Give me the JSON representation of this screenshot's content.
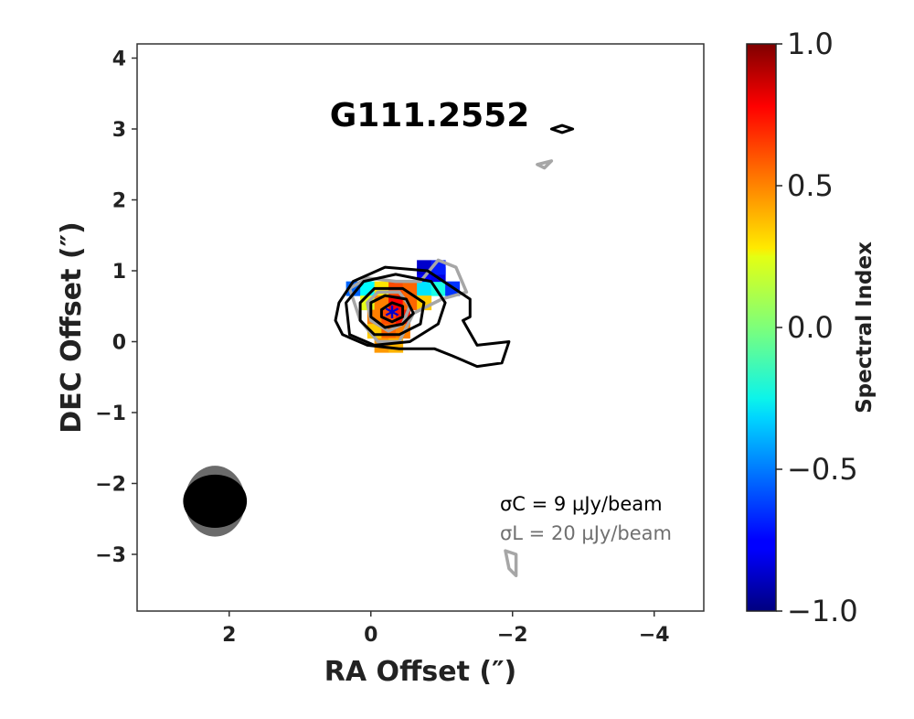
{
  "chart_data": {
    "type": "heatmap",
    "title": "G111.2552",
    "xlabel": "RA Offset (″)",
    "ylabel": "DEC Offset (″)",
    "xlim": [
      3.3,
      -4.7
    ],
    "ylim": [
      -3.8,
      4.2
    ],
    "x_ticks": [
      2,
      0,
      -2,
      -4
    ],
    "x_tick_labels": [
      "2",
      "0",
      "−2",
      "−4"
    ],
    "y_ticks": [
      -3,
      -2,
      -1,
      0,
      1,
      2,
      3,
      4
    ],
    "y_tick_labels": [
      "−3",
      "−2",
      "−1",
      "0",
      "1",
      "2",
      "3",
      "4"
    ],
    "grid": false,
    "colorbar": {
      "label": "Spectral Index",
      "colormap": "jet",
      "range": [
        -1.0,
        1.0
      ],
      "ticks": [
        1.0,
        0.5,
        0.0,
        -0.5,
        -1.0
      ],
      "tick_labels": [
        "1.0",
        "0.5",
        "0.0",
        "−0.5",
        "−1.0"
      ]
    },
    "spectral_index_pixels": [
      {
        "x": 0.25,
        "y": 0.75,
        "value": -0.55
      },
      {
        "x": 0.05,
        "y": 0.75,
        "value": -0.25
      },
      {
        "x": -0.15,
        "y": 0.75,
        "value": 0.3
      },
      {
        "x": -0.35,
        "y": 0.75,
        "value": 0.6
      },
      {
        "x": -0.55,
        "y": 0.75,
        "value": 0.55
      },
      {
        "x": -0.75,
        "y": 0.75,
        "value": -0.3
      },
      {
        "x": -0.95,
        "y": 0.75,
        "value": -0.2
      },
      {
        "x": -1.15,
        "y": 0.75,
        "value": -0.65
      },
      {
        "x": 0.05,
        "y": 0.55,
        "value": 0.2
      },
      {
        "x": -0.15,
        "y": 0.55,
        "value": 0.5
      },
      {
        "x": -0.35,
        "y": 0.55,
        "value": 0.75
      },
      {
        "x": -0.55,
        "y": 0.55,
        "value": 0.55
      },
      {
        "x": -0.75,
        "y": 0.55,
        "value": 0.35
      },
      {
        "x": -0.05,
        "y": 0.35,
        "value": 0.5
      },
      {
        "x": -0.25,
        "y": 0.35,
        "value": 0.6
      },
      {
        "x": -0.45,
        "y": 0.35,
        "value": 0.7
      },
      {
        "x": -0.05,
        "y": 0.15,
        "value": 0.35
      },
      {
        "x": -0.25,
        "y": 0.15,
        "value": 0.55
      },
      {
        "x": -0.45,
        "y": 0.15,
        "value": 0.5
      },
      {
        "x": -0.15,
        "y": -0.05,
        "value": 0.45
      },
      {
        "x": -0.35,
        "y": -0.05,
        "value": 0.4
      },
      {
        "x": -0.75,
        "y": 0.95,
        "value": -0.75
      },
      {
        "x": -0.95,
        "y": 0.95,
        "value": -0.8
      },
      {
        "x": -0.75,
        "y": 1.05,
        "value": -0.85
      },
      {
        "x": -0.95,
        "y": 1.05,
        "value": -0.7
      }
    ],
    "continuum_contours": {
      "color": "#000000",
      "rms_label": "σC = 9 µJy/beam",
      "levels": [
        {
          "points": [
            [
              0.45,
              0.55
            ],
            [
              0.25,
              0.85
            ],
            [
              -0.2,
              1.05
            ],
            [
              -0.8,
              1.0
            ],
            [
              -1.4,
              0.6
            ],
            [
              -1.4,
              0.35
            ],
            [
              -1.3,
              0.3
            ],
            [
              -1.5,
              -0.05
            ],
            [
              -1.95,
              0.0
            ],
            [
              -1.85,
              -0.3
            ],
            [
              -1.5,
              -0.35
            ],
            [
              -1.15,
              -0.2
            ],
            [
              -0.9,
              -0.1
            ],
            [
              -0.4,
              -0.1
            ],
            [
              0.05,
              -0.05
            ],
            [
              0.4,
              0.1
            ],
            [
              0.5,
              0.3
            ]
          ]
        },
        {
          "points": [
            [
              0.35,
              0.55
            ],
            [
              0.1,
              0.85
            ],
            [
              -0.35,
              0.95
            ],
            [
              -0.85,
              0.85
            ],
            [
              -1.05,
              0.55
            ],
            [
              -0.95,
              0.25
            ],
            [
              -0.55,
              0.0
            ],
            [
              -0.05,
              -0.05
            ],
            [
              0.3,
              0.1
            ]
          ]
        },
        {
          "points": [
            [
              0.15,
              0.55
            ],
            [
              -0.05,
              0.75
            ],
            [
              -0.45,
              0.75
            ],
            [
              -0.75,
              0.55
            ],
            [
              -0.7,
              0.25
            ],
            [
              -0.4,
              0.1
            ],
            [
              -0.05,
              0.1
            ],
            [
              0.15,
              0.3
            ]
          ]
        },
        {
          "points": [
            [
              0.0,
              0.55
            ],
            [
              -0.2,
              0.65
            ],
            [
              -0.5,
              0.6
            ],
            [
              -0.6,
              0.4
            ],
            [
              -0.45,
              0.25
            ],
            [
              -0.2,
              0.2
            ],
            [
              0.0,
              0.35
            ]
          ]
        },
        {
          "points": [
            [
              -0.15,
              0.45
            ],
            [
              -0.3,
              0.55
            ],
            [
              -0.45,
              0.5
            ],
            [
              -0.45,
              0.35
            ],
            [
              -0.3,
              0.28
            ],
            [
              -0.15,
              0.35
            ]
          ]
        },
        {
          "points": [
            [
              -2.55,
              3.0
            ],
            [
              -2.7,
              3.05
            ],
            [
              -2.85,
              3.0
            ],
            [
              -2.7,
              2.95
            ]
          ]
        }
      ]
    },
    "line_contours": {
      "color": "#a6a6a6",
      "rms_label": "σL = 20 µJy/beam",
      "levels": [
        {
          "points": [
            [
              0.3,
              0.75
            ],
            [
              0.05,
              0.9
            ],
            [
              -0.35,
              0.85
            ],
            [
              -0.7,
              0.85
            ],
            [
              -0.95,
              1.15
            ],
            [
              -1.2,
              1.05
            ],
            [
              -1.35,
              0.7
            ],
            [
              -1.0,
              0.6
            ],
            [
              -0.6,
              0.4
            ],
            [
              -0.4,
              0.0
            ],
            [
              -0.1,
              0.0
            ],
            [
              0.15,
              0.3
            ]
          ]
        },
        {
          "points": [
            [
              0.05,
              0.55
            ],
            [
              -0.1,
              0.7
            ],
            [
              -0.4,
              0.7
            ],
            [
              -0.55,
              0.5
            ],
            [
              -0.45,
              0.25
            ],
            [
              -0.25,
              0.15
            ],
            [
              0.0,
              0.3
            ]
          ]
        },
        {
          "points": [
            [
              -2.35,
              2.5
            ],
            [
              -2.55,
              2.55
            ],
            [
              -2.45,
              2.45
            ]
          ]
        },
        {
          "points": [
            [
              -1.9,
              -2.95
            ],
            [
              -2.05,
              -3.0
            ],
            [
              -2.05,
              -3.3
            ],
            [
              -1.95,
              -3.2
            ]
          ]
        }
      ]
    },
    "source_marker": {
      "x": -0.3,
      "y": 0.4,
      "symbol": "*",
      "color": "#0000cc"
    },
    "beams": [
      {
        "name": "line beam",
        "x": 2.2,
        "y": -2.25,
        "major": 0.85,
        "minor": 1.0,
        "color": "#6b6b6b"
      },
      {
        "name": "continuum beam",
        "x": 2.2,
        "y": -2.25,
        "major": 0.9,
        "minor": 0.75,
        "color": "#000000"
      }
    ]
  }
}
